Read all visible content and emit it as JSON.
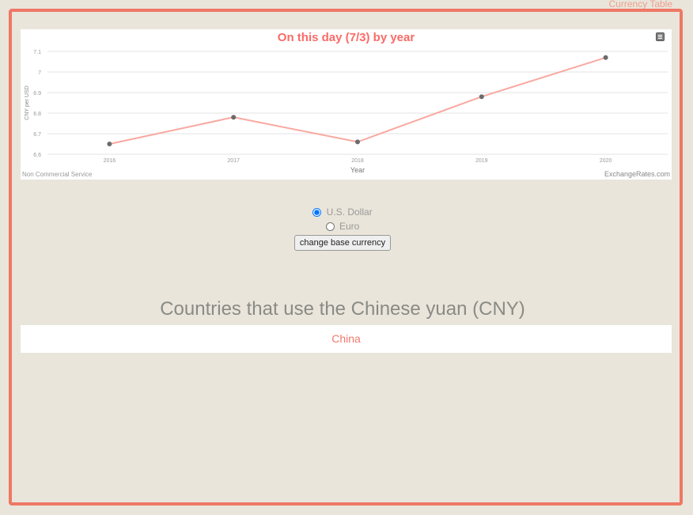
{
  "header": {
    "top_link": "Currency Table"
  },
  "chart": {
    "title": "On this day (7/3) by year",
    "credit_left": "Non Commercial Service",
    "credit_right": "ExchangeRates.com",
    "menu_icon": "hamburger-menu-icon"
  },
  "chart_data": {
    "type": "line",
    "title": "On this day (7/3) by year",
    "xlabel": "Year",
    "ylabel": "CNY per USD",
    "x": [
      "2016",
      "2017",
      "2018",
      "2019",
      "2020"
    ],
    "y_ticks": [
      "6.6",
      "6.7",
      "6.8",
      "6.9",
      "7",
      "7.1"
    ],
    "ylim": [
      6.6,
      7.1
    ],
    "series": [
      {
        "values": [
          6.65,
          6.78,
          6.66,
          6.88,
          7.07
        ],
        "color": "#f9a8a0"
      }
    ],
    "grid": true,
    "legend": "none"
  },
  "base_currency": {
    "options": [
      "U.S. Dollar",
      "Euro"
    ],
    "selected": "U.S. Dollar",
    "button_label": "change base currency"
  },
  "countries": {
    "heading": "Countries that use the Chinese yuan (CNY)",
    "items": [
      "China"
    ],
    "link_color": "#f17a6d"
  },
  "colors": {
    "frame_border": "#ef7766",
    "background": "#e9e5da",
    "accent": "#fb6b67"
  }
}
